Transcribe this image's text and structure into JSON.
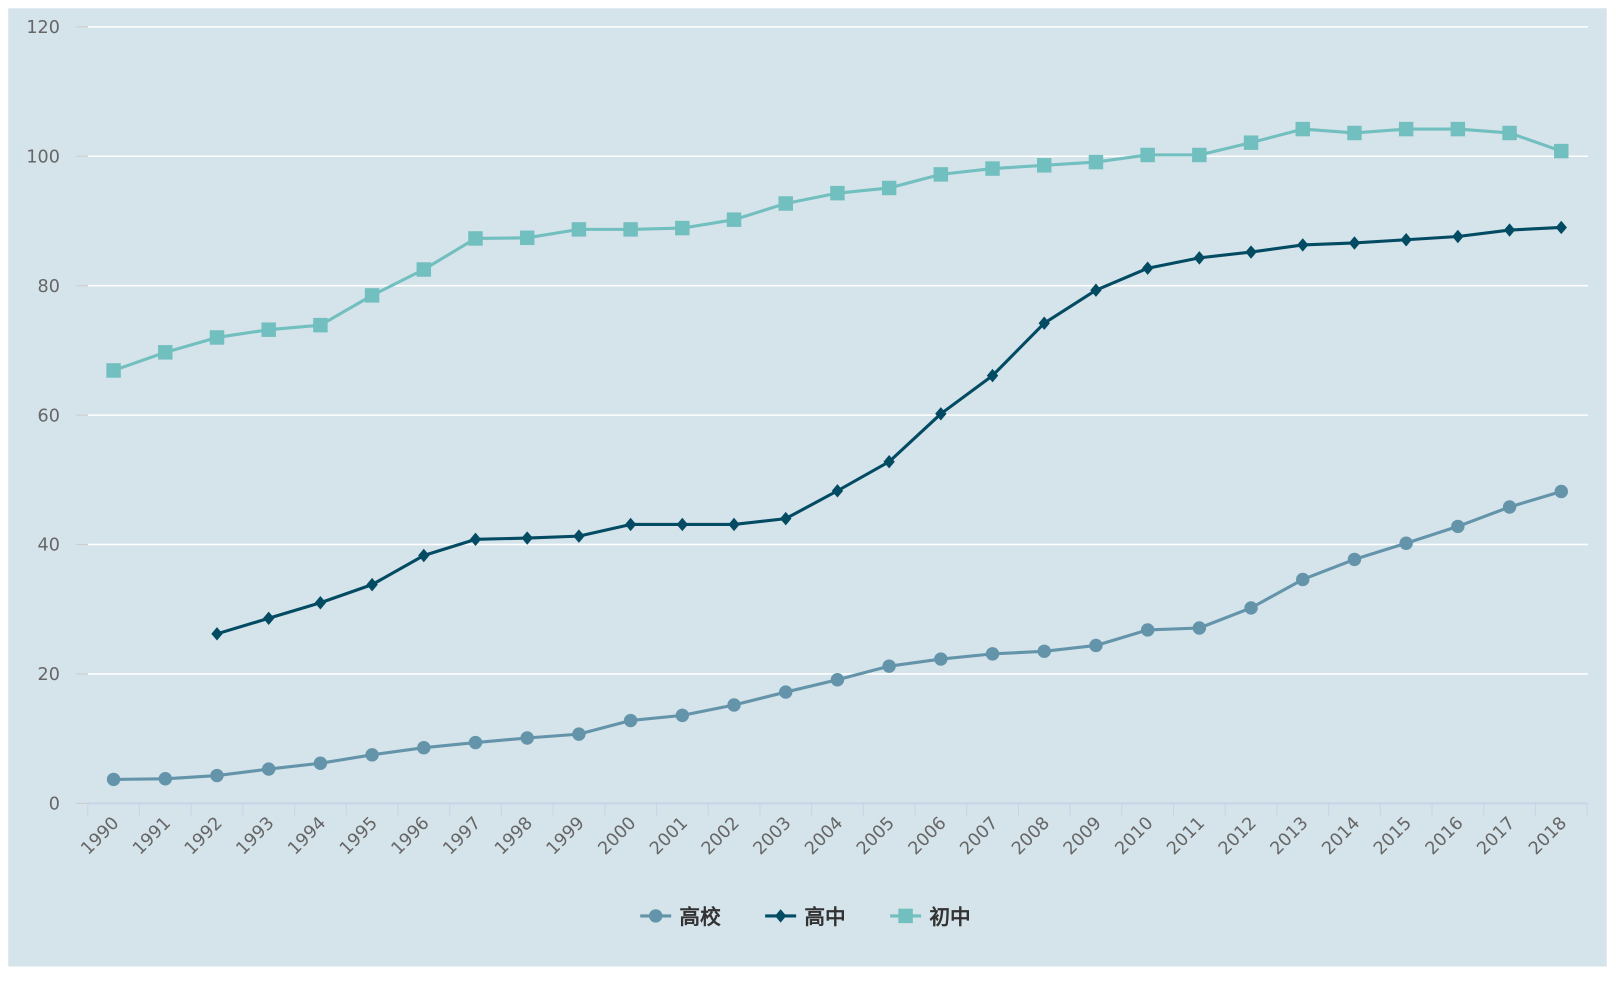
{
  "chart_data": {
    "type": "line",
    "title": "",
    "xlabel": "",
    "ylabel": "",
    "ylim": [
      0,
      120
    ],
    "yticks": [
      "0",
      "20",
      "40",
      "60",
      "80",
      "100",
      "120"
    ],
    "grid": true,
    "legend_position": "bottom-center",
    "background": "#d5e3ea",
    "x": [
      "1990",
      "1991",
      "1992",
      "1993",
      "1994",
      "1995",
      "1996",
      "1997",
      "1998",
      "1999",
      "2000",
      "2001",
      "2002",
      "2003",
      "2004",
      "2005",
      "2006",
      "2007",
      "2008",
      "2009",
      "2010",
      "2011",
      "2012",
      "2013",
      "2014",
      "2015",
      "2016",
      "2017",
      "2018"
    ],
    "series": [
      {
        "name": "高校",
        "color": "#6494aa",
        "marker": "circle",
        "values": [
          3.7,
          3.8,
          4.3,
          5.3,
          6.2,
          7.5,
          8.6,
          9.4,
          10.1,
          10.7,
          12.8,
          13.6,
          15.2,
          17.2,
          19.1,
          21.2,
          22.3,
          23.1,
          23.5,
          24.4,
          26.8,
          27.1,
          30.2,
          34.6,
          37.7,
          40.2,
          42.8,
          45.8,
          48.2
        ]
      },
      {
        "name": "高中",
        "color": "#024b63",
        "marker": "diamond",
        "values": [
          null,
          null,
          26.2,
          28.6,
          31.0,
          33.8,
          38.3,
          40.8,
          41.0,
          41.3,
          43.1,
          43.1,
          43.1,
          44.0,
          48.3,
          52.8,
          60.2,
          66.1,
          74.2,
          79.3,
          82.7,
          84.3,
          85.2,
          86.3,
          86.6,
          87.1,
          87.6,
          88.6,
          89.0
        ]
      },
      {
        "name": "初中",
        "color": "#72bfbf",
        "marker": "square",
        "values": [
          66.9,
          69.7,
          72.0,
          73.2,
          73.9,
          78.5,
          82.5,
          87.3,
          87.4,
          88.7,
          88.7,
          88.9,
          90.2,
          92.7,
          94.3,
          95.1,
          97.2,
          98.1,
          98.6,
          99.1,
          100.2,
          100.2,
          102.1,
          104.2,
          103.6,
          104.2,
          104.2,
          103.6,
          100.8
        ]
      }
    ]
  }
}
